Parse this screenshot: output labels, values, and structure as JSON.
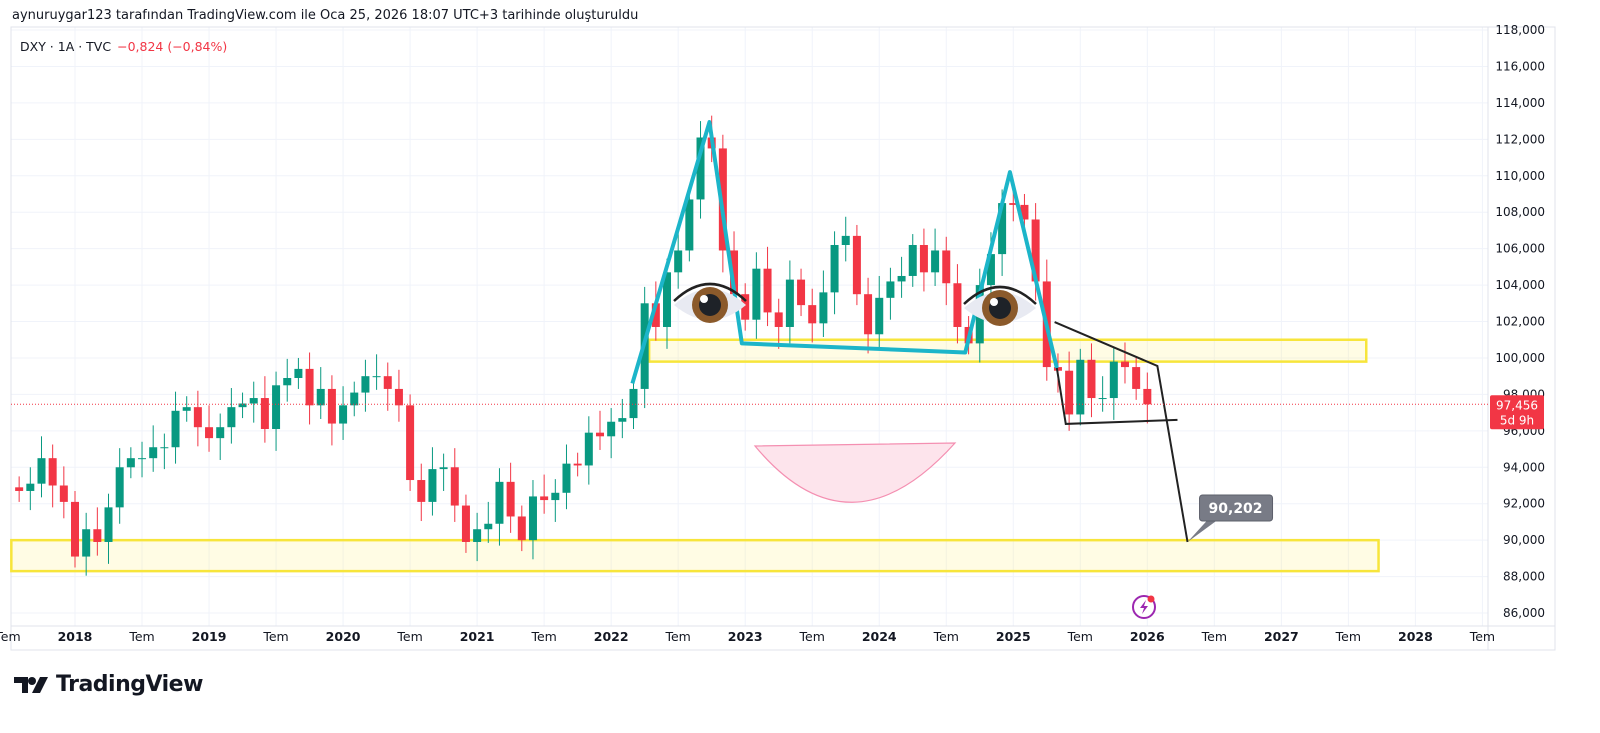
{
  "attribution": "aynuruygar123 tarafından TradingView.com ile Oca 25, 2026 18:07 UTC+3 tarihinde oluşturuldu",
  "legend": {
    "symbol": "DXY · 1A · TVC",
    "change": "−0,824 (−0,84%)"
  },
  "logo": "TradingView",
  "colors": {
    "up": "#089981",
    "down": "#f23645",
    "pattern": "#1cb5c9",
    "zone": "#f7e53b",
    "label": "#787b86"
  },
  "chart_data": {
    "type": "candlestick",
    "symbol": "DXY",
    "interval": "1 month",
    "start": "2017-08",
    "start_month_offset": -5,
    "close": [
      92.7,
      93.1,
      94.5,
      93.0,
      92.1,
      89.1,
      90.6,
      89.9,
      91.8,
      94.0,
      94.5,
      94.5,
      95.1,
      95.1,
      97.1,
      97.3,
      96.2,
      95.6,
      96.2,
      97.3,
      97.5,
      97.8,
      96.1,
      98.5,
      98.9,
      99.4,
      97.4,
      98.3,
      96.4,
      97.4,
      98.1,
      99.0,
      99.0,
      98.3,
      97.4,
      93.3,
      92.1,
      93.9,
      94.0,
      91.9,
      89.9,
      90.6,
      90.9,
      93.2,
      91.3,
      90.0,
      92.4,
      92.2,
      92.6,
      94.2,
      94.1,
      95.9,
      95.7,
      96.5,
      96.7,
      98.3,
      103.0,
      101.7,
      104.7,
      105.9,
      108.7,
      112.1,
      111.5,
      105.9,
      103.5,
      102.1,
      104.9,
      102.5,
      101.7,
      104.3,
      102.9,
      101.9,
      103.6,
      106.2,
      106.7,
      103.5,
      101.3,
      103.3,
      104.2,
      104.5,
      106.2,
      104.7,
      105.9,
      104.1,
      101.7,
      100.8,
      104.0,
      105.7,
      108.5,
      108.4,
      107.6,
      104.2,
      99.5,
      99.3,
      96.9,
      99.9,
      97.8,
      97.8,
      99.8,
      99.5,
      98.3,
      97.456
    ],
    "first_open": 92.9,
    "last_price": {
      "value": "97,456",
      "countdown": "5d 9h"
    },
    "y_ticks": [
      "86,000",
      "88,000",
      "90,000",
      "92,000",
      "94,000",
      "96,000",
      "98,000",
      "100,000",
      "102,000",
      "104,000",
      "106,000",
      "108,000",
      "110,000",
      "112,000",
      "114,000",
      "116,000",
      "118,000"
    ],
    "y_tick_values": [
      86,
      88,
      90,
      92,
      94,
      96,
      98,
      100,
      102,
      104,
      106,
      108,
      110,
      112,
      114,
      116,
      118
    ],
    "x_ticks": [
      "Tem",
      "2018",
      "Tem",
      "2019",
      "Tem",
      "2020",
      "Tem",
      "2021",
      "Tem",
      "2022",
      "Tem",
      "2023",
      "Tem",
      "2024",
      "Tem",
      "2025",
      "Tem",
      "2026",
      "Tem",
      "2027",
      "Tem",
      "2028",
      "Tem"
    ],
    "x_tick_months": [
      -6,
      0,
      6,
      12,
      18,
      24,
      30,
      36,
      42,
      48,
      54,
      60,
      66,
      72,
      78,
      84,
      90,
      96,
      102,
      108,
      114,
      120,
      126
    ],
    "ylim": [
      86,
      118
    ],
    "drawings": {
      "zones": [
        {
          "from": 51.4,
          "to": 115.6,
          "top": 101.0,
          "bottom": 99.8
        },
        {
          "from": -5.7,
          "to": 116.7,
          "top": 90.0,
          "bottom": 88.3
        }
      ],
      "head_shoulders": [
        [
          49.9,
          98.6
        ],
        [
          56.8,
          112.95
        ],
        [
          59.7,
          100.8
        ],
        [
          79.7,
          100.3
        ],
        [
          83.7,
          110.2
        ],
        [
          87.9,
          99.45
        ]
      ],
      "black_lines": [
        [
          [
            87.7,
            101.97
          ],
          [
            96.9,
            99.56
          ],
          [
            99.6,
            89.9
          ]
        ],
        [
          [
            87.9,
            99.45
          ],
          [
            88.7,
            96.38
          ],
          [
            98.7,
            96.6
          ]
        ]
      ],
      "target": {
        "month": 99.6,
        "price": 89.9,
        "label": "90,202"
      }
    }
  }
}
